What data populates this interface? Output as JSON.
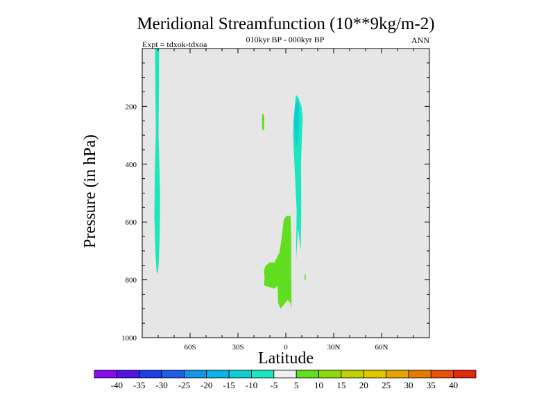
{
  "chart_data": {
    "type": "heatmap",
    "title": "Meridional Streamfunction (10**9kg/m-2)",
    "subtitle": "010kyr BP - 000kyr BP",
    "left_label": "Expt = tdxok-tdxoa",
    "right_label": "ANN",
    "xlabel": "Latitude",
    "ylabel": "Pressure (in hPa)",
    "xlim": [
      -90,
      90
    ],
    "ylim": [
      1000,
      0
    ],
    "x_ticks": [
      {
        "value": -60,
        "label": "60S"
      },
      {
        "value": -30,
        "label": "30S"
      },
      {
        "value": 0,
        "label": "0"
      },
      {
        "value": 30,
        "label": "30N"
      },
      {
        "value": 60,
        "label": "60N"
      }
    ],
    "y_ticks": [
      {
        "value": 200,
        "label": "200"
      },
      {
        "value": 400,
        "label": "400"
      },
      {
        "value": 600,
        "label": "600"
      },
      {
        "value": 800,
        "label": "800"
      },
      {
        "value": 1000,
        "label": "1000"
      }
    ],
    "background_color": "#e6e6e6",
    "regions": [
      {
        "name": "sh-column-negative",
        "level": -10,
        "color": "#1de6bc",
        "points": [
          [
            -82,
            0
          ],
          [
            -79.5,
            0
          ],
          [
            -79.5,
            120
          ],
          [
            -79.8,
            300
          ],
          [
            -78.8,
            500
          ],
          [
            -79,
            640
          ],
          [
            -79.6,
            740
          ],
          [
            -80.3,
            780
          ],
          [
            -81,
            770
          ],
          [
            -81.8,
            700
          ],
          [
            -82.4,
            580
          ],
          [
            -82.1,
            420
          ],
          [
            -81.5,
            280
          ],
          [
            -81.8,
            120
          ]
        ]
      },
      {
        "name": "nh-column-negative",
        "level": -10,
        "color": "#1de6bc",
        "points": [
          [
            5.6,
            200
          ],
          [
            6.3,
            160
          ],
          [
            7.8,
            168
          ],
          [
            9.8,
            200
          ],
          [
            10.6,
            240
          ],
          [
            10.1,
            300
          ],
          [
            9.5,
            400
          ],
          [
            9.7,
            560
          ],
          [
            9.3,
            700
          ],
          [
            7.7,
            620
          ],
          [
            6.4,
            740
          ],
          [
            6.8,
            560
          ],
          [
            5.4,
            400
          ],
          [
            4.5,
            300
          ],
          [
            4.8,
            250
          ]
        ]
      },
      {
        "name": "nh-column-core",
        "level": -15,
        "color": "#0ccfd2",
        "points": [
          [
            5.5,
            220
          ],
          [
            6.4,
            180
          ],
          [
            8.3,
            190
          ],
          [
            8.2,
            260
          ],
          [
            7.3,
            330
          ],
          [
            6.2,
            340
          ],
          [
            5.8,
            300
          ],
          [
            5.0,
            260
          ]
        ]
      },
      {
        "name": "small-positive-patch",
        "level": 5,
        "color": "#61de1f",
        "points": [
          [
            -14.9,
            228
          ],
          [
            -14.0,
            226
          ],
          [
            -13.5,
            238
          ],
          [
            -13.6,
            268
          ],
          [
            -13.5,
            280
          ],
          [
            -14.5,
            284
          ],
          [
            -14.9,
            270
          ]
        ]
      },
      {
        "name": "tiny-positive-mark",
        "level": 5,
        "color": "#61de1f",
        "points": [
          [
            11.8,
            782
          ],
          [
            12.5,
            782
          ],
          [
            12.5,
            800
          ],
          [
            11.8,
            800
          ]
        ]
      },
      {
        "name": "tropical-lower-positive",
        "level": 5,
        "color": "#61de1f",
        "points": [
          [
            -3.2,
            680
          ],
          [
            -1.2,
            590
          ],
          [
            0.8,
            578
          ],
          [
            3.0,
            580
          ],
          [
            3.4,
            650
          ],
          [
            3.4,
            760
          ],
          [
            3.6,
            900
          ],
          [
            2.8,
            880
          ],
          [
            1.2,
            870
          ],
          [
            -3.4,
            900
          ],
          [
            -4.8,
            880
          ],
          [
            -5.2,
            820
          ],
          [
            -7.2,
            830
          ],
          [
            -13.6,
            820
          ],
          [
            -13.3,
            790
          ],
          [
            -13.8,
            770
          ],
          [
            -12.8,
            752
          ],
          [
            -10.3,
            740
          ],
          [
            -7.1,
            740
          ],
          [
            -4.1,
            706
          ]
        ]
      }
    ],
    "colorbar": {
      "labels": [
        "-40",
        "-35",
        "-30",
        "-25",
        "-20",
        "-15",
        "-10",
        "-5",
        "5",
        "10",
        "15",
        "20",
        "25",
        "30",
        "35",
        "40"
      ],
      "colors": [
        "#8a0aee",
        "#5014e6",
        "#1e3ce8",
        "#1e5ee8",
        "#1496e8",
        "#0ab4e6",
        "#0ccfd2",
        "#1de6bc",
        "#f0f0f0",
        "#61de1f",
        "#8fd80c",
        "#bed205",
        "#e1c800",
        "#e6a500",
        "#e67a00",
        "#e6500a",
        "#e6280a"
      ]
    }
  }
}
